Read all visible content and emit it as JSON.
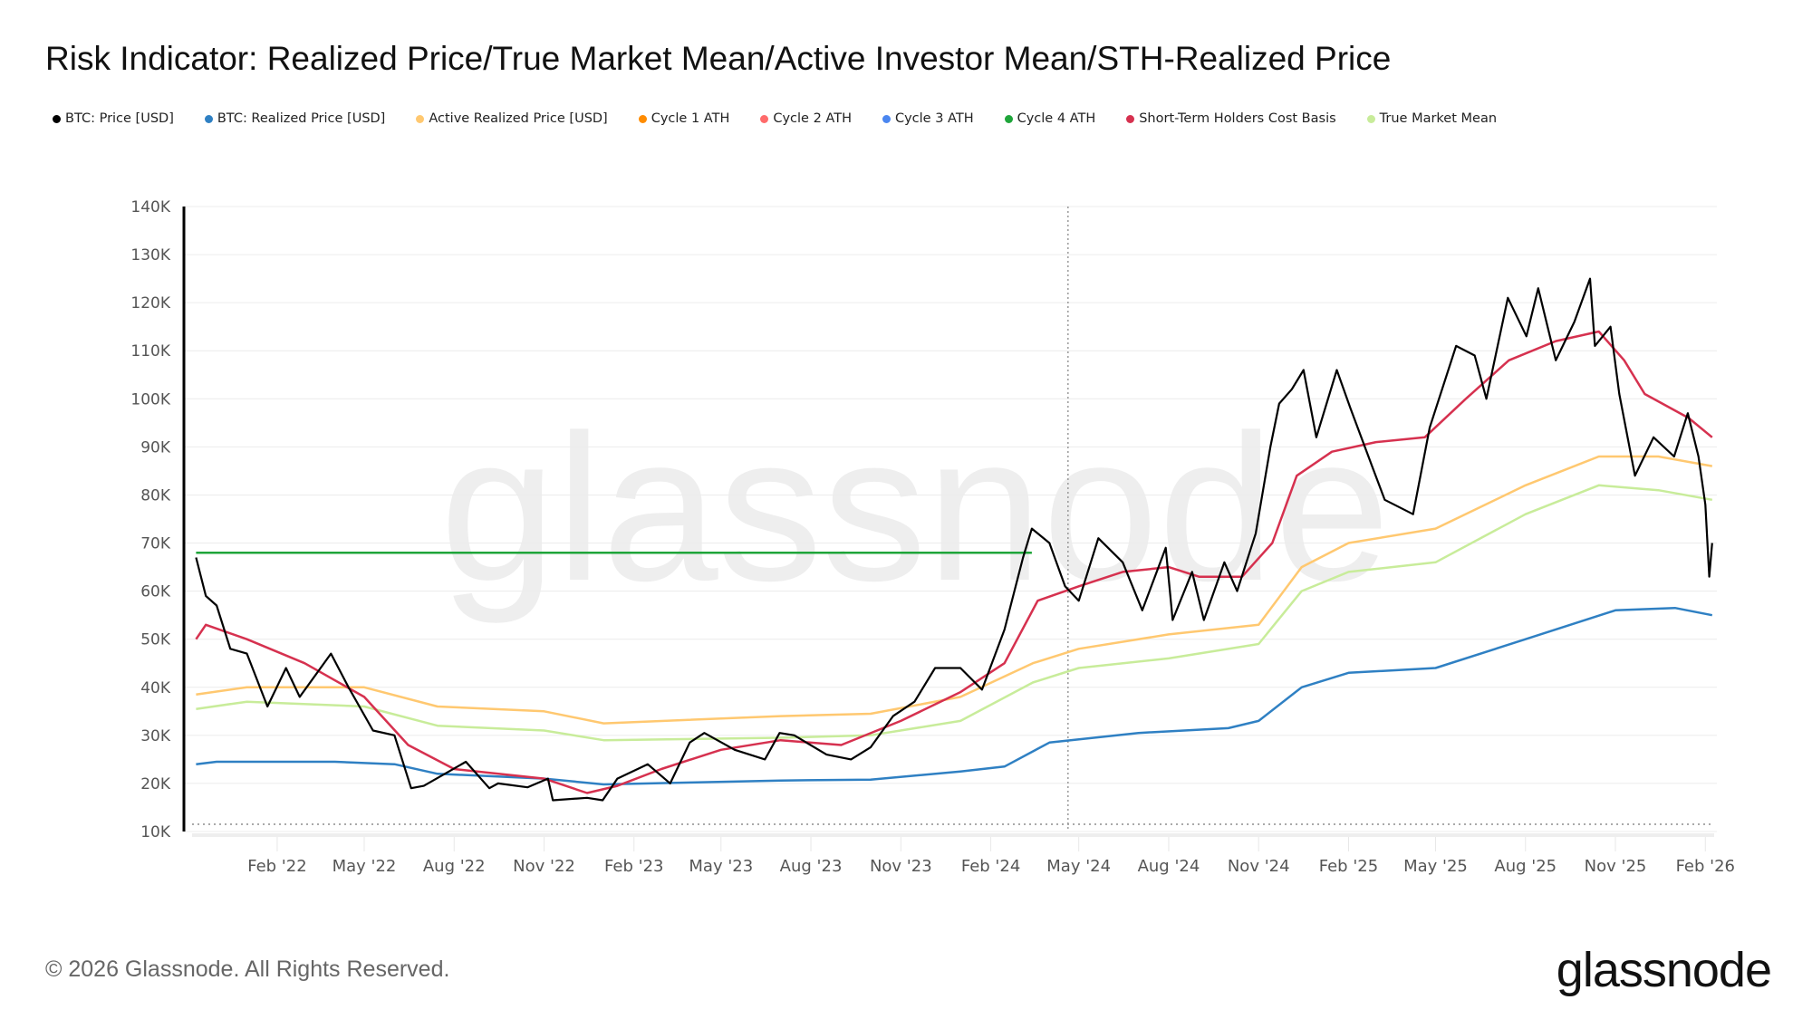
{
  "title": "Risk Indicator: Realized Price/True Market Mean/Active Investor Mean/STH-Realized Price",
  "footer": "© 2026 Glassnode. All Rights Reserved.",
  "logo": "glassnode",
  "watermark": "glassnode",
  "chart_data": {
    "type": "line",
    "title": "Risk Indicator: Realized Price/True Market Mean/Active Investor Mean/STH-Realized Price",
    "xlim": [
      "2021-11-05",
      "2026-02-10"
    ],
    "ylim": [
      10000,
      140000
    ],
    "yticks": [
      10000,
      20000,
      30000,
      40000,
      50000,
      60000,
      70000,
      80000,
      90000,
      100000,
      110000,
      120000,
      130000,
      140000
    ],
    "ytick_labels": [
      "10K",
      "20K",
      "30K",
      "40K",
      "50K",
      "60K",
      "70K",
      "80K",
      "90K",
      "100K",
      "110K",
      "120K",
      "130K",
      "140K"
    ],
    "xticks": [
      "2022-02-01",
      "2022-05-01",
      "2022-08-01",
      "2022-11-01",
      "2023-02-01",
      "2023-05-01",
      "2023-08-01",
      "2023-11-01",
      "2024-02-01",
      "2024-05-01",
      "2024-08-01",
      "2024-11-01",
      "2025-02-01",
      "2025-05-01",
      "2025-08-01",
      "2025-11-01",
      "2026-02-01"
    ],
    "xtick_labels": [
      "Feb '22",
      "May '22",
      "Aug '22",
      "Nov '22",
      "Feb '23",
      "May '23",
      "Aug '23",
      "Nov '23",
      "Feb '24",
      "May '24",
      "Aug '24",
      "Nov '24",
      "Feb '25",
      "May '25",
      "Aug '25",
      "Nov '25",
      "Feb '26"
    ],
    "grid": true,
    "legend_position": "top",
    "vertical_marker": "2024-04-20",
    "series": [
      {
        "name": "BTC: Price [USD]",
        "color": "#000000",
        "width": 2.2,
        "points": [
          [
            "2021-11-10",
            67000
          ],
          [
            "2021-11-20",
            59000
          ],
          [
            "2021-12-01",
            57000
          ],
          [
            "2021-12-15",
            48000
          ],
          [
            "2022-01-01",
            47000
          ],
          [
            "2022-01-22",
            36000
          ],
          [
            "2022-02-10",
            44000
          ],
          [
            "2022-02-24",
            38000
          ],
          [
            "2022-03-28",
            47000
          ],
          [
            "2022-04-15",
            40000
          ],
          [
            "2022-05-10",
            31000
          ],
          [
            "2022-06-01",
            30000
          ],
          [
            "2022-06-18",
            19000
          ],
          [
            "2022-07-01",
            19500
          ],
          [
            "2022-08-13",
            24500
          ],
          [
            "2022-09-06",
            19000
          ],
          [
            "2022-09-15",
            20000
          ],
          [
            "2022-10-15",
            19200
          ],
          [
            "2022-11-05",
            21000
          ],
          [
            "2022-11-10",
            16500
          ],
          [
            "2022-12-15",
            17000
          ],
          [
            "2022-12-31",
            16500
          ],
          [
            "2023-01-15",
            21000
          ],
          [
            "2023-02-15",
            24000
          ],
          [
            "2023-03-10",
            20000
          ],
          [
            "2023-03-30",
            28500
          ],
          [
            "2023-04-14",
            30500
          ],
          [
            "2023-05-15",
            27000
          ],
          [
            "2023-06-15",
            25000
          ],
          [
            "2023-06-30",
            30500
          ],
          [
            "2023-07-15",
            30000
          ],
          [
            "2023-08-17",
            26000
          ],
          [
            "2023-09-11",
            25000
          ],
          [
            "2023-10-01",
            27500
          ],
          [
            "2023-10-24",
            34000
          ],
          [
            "2023-11-15",
            37000
          ],
          [
            "2023-12-06",
            44000
          ],
          [
            "2024-01-01",
            44000
          ],
          [
            "2024-01-23",
            39500
          ],
          [
            "2024-02-15",
            52000
          ],
          [
            "2024-03-05",
            67000
          ],
          [
            "2024-03-14",
            73000
          ],
          [
            "2024-04-01",
            70000
          ],
          [
            "2024-04-17",
            61000
          ],
          [
            "2024-05-01",
            58000
          ],
          [
            "2024-05-21",
            71000
          ],
          [
            "2024-06-15",
            66000
          ],
          [
            "2024-07-05",
            56000
          ],
          [
            "2024-07-29",
            69000
          ],
          [
            "2024-08-05",
            54000
          ],
          [
            "2024-08-25",
            64000
          ],
          [
            "2024-09-06",
            54000
          ],
          [
            "2024-09-27",
            66000
          ],
          [
            "2024-10-10",
            60000
          ],
          [
            "2024-10-29",
            72000
          ],
          [
            "2024-11-13",
            90000
          ],
          [
            "2024-11-22",
            99000
          ],
          [
            "2024-12-05",
            102000
          ],
          [
            "2024-12-17",
            106000
          ],
          [
            "2024-12-30",
            92000
          ],
          [
            "2025-01-20",
            106000
          ],
          [
            "2025-02-03",
            98000
          ],
          [
            "2025-02-25",
            86000
          ],
          [
            "2025-03-10",
            79000
          ],
          [
            "2025-04-08",
            76000
          ],
          [
            "2025-04-25",
            94000
          ],
          [
            "2025-05-22",
            111000
          ],
          [
            "2025-06-10",
            109000
          ],
          [
            "2025-06-22",
            100000
          ],
          [
            "2025-07-14",
            121000
          ],
          [
            "2025-08-02",
            113000
          ],
          [
            "2025-08-14",
            123000
          ],
          [
            "2025-09-01",
            108000
          ],
          [
            "2025-09-20",
            116000
          ],
          [
            "2025-10-06",
            125000
          ],
          [
            "2025-10-11",
            111000
          ],
          [
            "2025-10-27",
            115000
          ],
          [
            "2025-11-05",
            101000
          ],
          [
            "2025-11-21",
            84000
          ],
          [
            "2025-12-10",
            92000
          ],
          [
            "2025-12-31",
            88000
          ],
          [
            "2026-01-14",
            97000
          ],
          [
            "2026-01-25",
            88000
          ],
          [
            "2026-02-01",
            78000
          ],
          [
            "2026-02-05",
            63000
          ],
          [
            "2026-02-08",
            70000
          ]
        ]
      },
      {
        "name": "BTC: Realized Price [USD]",
        "color": "#2f80c3",
        "width": 2.5,
        "points": [
          [
            "2021-11-10",
            24000
          ],
          [
            "2021-12-01",
            24500
          ],
          [
            "2022-04-01",
            24500
          ],
          [
            "2022-06-01",
            24000
          ],
          [
            "2022-07-15",
            22000
          ],
          [
            "2022-11-01",
            21000
          ],
          [
            "2023-01-01",
            19800
          ],
          [
            "2023-04-01",
            20200
          ],
          [
            "2023-07-01",
            20600
          ],
          [
            "2023-10-01",
            20800
          ],
          [
            "2024-01-01",
            22500
          ],
          [
            "2024-02-15",
            23500
          ],
          [
            "2024-04-01",
            28500
          ],
          [
            "2024-07-01",
            30500
          ],
          [
            "2024-10-01",
            31500
          ],
          [
            "2024-11-01",
            33000
          ],
          [
            "2024-12-15",
            40000
          ],
          [
            "2025-02-01",
            43000
          ],
          [
            "2025-05-01",
            44000
          ],
          [
            "2025-08-01",
            50000
          ],
          [
            "2025-11-01",
            56000
          ],
          [
            "2026-01-01",
            56500
          ],
          [
            "2026-02-08",
            55000
          ]
        ]
      },
      {
        "name": "Active Realized Price [USD]",
        "color": "#ffc870",
        "width": 2.5,
        "points": [
          [
            "2021-11-10",
            38500
          ],
          [
            "2022-01-01",
            40000
          ],
          [
            "2022-05-01",
            40000
          ],
          [
            "2022-07-15",
            36000
          ],
          [
            "2022-11-01",
            35000
          ],
          [
            "2023-01-01",
            32500
          ],
          [
            "2023-07-01",
            34000
          ],
          [
            "2023-10-01",
            34500
          ],
          [
            "2024-01-01",
            38000
          ],
          [
            "2024-03-15",
            45000
          ],
          [
            "2024-05-01",
            48000
          ],
          [
            "2024-08-01",
            51000
          ],
          [
            "2024-11-01",
            53000
          ],
          [
            "2024-12-15",
            65000
          ],
          [
            "2025-02-01",
            70000
          ],
          [
            "2025-05-01",
            73000
          ],
          [
            "2025-08-01",
            82000
          ],
          [
            "2025-10-15",
            88000
          ],
          [
            "2025-12-15",
            88000
          ],
          [
            "2026-02-08",
            86000
          ]
        ]
      },
      {
        "name": "Cycle 1 ATH",
        "color": "#ff8c00",
        "width": 0,
        "points": []
      },
      {
        "name": "Cycle 2 ATH",
        "color": "#ff6b6b",
        "width": 0,
        "points": []
      },
      {
        "name": "Cycle 3 ATH",
        "color": "#4a86f0",
        "width": 0,
        "points": []
      },
      {
        "name": "Cycle 4 ATH",
        "color": "#1fa53a",
        "width": 2.5,
        "points": [
          [
            "2021-11-10",
            68000
          ],
          [
            "2024-03-14",
            68000
          ]
        ]
      },
      {
        "name": "Short-Term Holders Cost Basis",
        "color": "#d6314f",
        "width": 2.5,
        "points": [
          [
            "2021-11-10",
            50000
          ],
          [
            "2021-11-20",
            53000
          ],
          [
            "2022-01-01",
            50000
          ],
          [
            "2022-03-01",
            45000
          ],
          [
            "2022-05-01",
            38000
          ],
          [
            "2022-06-15",
            28000
          ],
          [
            "2022-08-01",
            23000
          ],
          [
            "2022-11-01",
            21000
          ],
          [
            "2022-12-15",
            18000
          ],
          [
            "2023-01-15",
            19500
          ],
          [
            "2023-03-01",
            23000
          ],
          [
            "2023-05-01",
            27000
          ],
          [
            "2023-07-01",
            29000
          ],
          [
            "2023-09-01",
            28000
          ],
          [
            "2023-11-01",
            33000
          ],
          [
            "2024-01-01",
            39000
          ],
          [
            "2024-02-15",
            45000
          ],
          [
            "2024-03-20",
            58000
          ],
          [
            "2024-05-01",
            61000
          ],
          [
            "2024-06-15",
            64000
          ],
          [
            "2024-08-01",
            65000
          ],
          [
            "2024-09-01",
            63000
          ],
          [
            "2024-10-15",
            63000
          ],
          [
            "2024-11-15",
            70000
          ],
          [
            "2024-12-10",
            84000
          ],
          [
            "2025-01-15",
            89000
          ],
          [
            "2025-03-01",
            91000
          ],
          [
            "2025-04-20",
            92000
          ],
          [
            "2025-06-01",
            100000
          ],
          [
            "2025-07-15",
            108000
          ],
          [
            "2025-09-01",
            112000
          ],
          [
            "2025-10-15",
            114000
          ],
          [
            "2025-11-10",
            108000
          ],
          [
            "2025-12-01",
            101000
          ],
          [
            "2026-01-15",
            96000
          ],
          [
            "2026-02-08",
            92000
          ]
        ]
      },
      {
        "name": "True Market Mean",
        "color": "#c8ec9a",
        "width": 2.5,
        "points": [
          [
            "2021-11-10",
            35500
          ],
          [
            "2022-01-01",
            37000
          ],
          [
            "2022-05-01",
            36000
          ],
          [
            "2022-07-15",
            32000
          ],
          [
            "2022-11-01",
            31000
          ],
          [
            "2023-01-01",
            29000
          ],
          [
            "2023-07-01",
            29500
          ],
          [
            "2023-10-01",
            30000
          ],
          [
            "2024-01-01",
            33000
          ],
          [
            "2024-03-15",
            41000
          ],
          [
            "2024-05-01",
            44000
          ],
          [
            "2024-08-01",
            46000
          ],
          [
            "2024-11-01",
            49000
          ],
          [
            "2024-12-15",
            60000
          ],
          [
            "2025-02-01",
            64000
          ],
          [
            "2025-05-01",
            66000
          ],
          [
            "2025-08-01",
            76000
          ],
          [
            "2025-10-15",
            82000
          ],
          [
            "2025-12-15",
            81000
          ],
          [
            "2026-02-08",
            79000
          ]
        ]
      }
    ]
  }
}
